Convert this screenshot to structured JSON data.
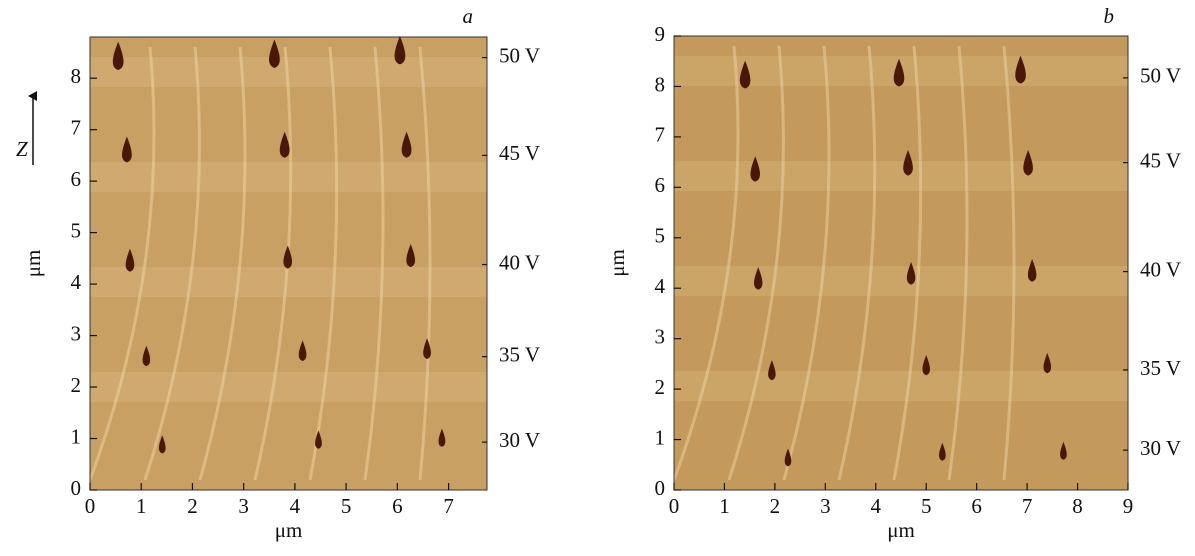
{
  "chart_data": [
    {
      "type": "scatter",
      "panel_label": "a",
      "xlabel": "μm",
      "ylabel": "μm",
      "axis_arrow_label": "Z",
      "x": [
        0.55,
        3.6,
        6.05,
        0.72,
        3.8,
        6.18,
        0.78,
        3.86,
        6.26,
        1.1,
        4.15,
        6.58,
        1.41,
        4.46,
        6.87
      ],
      "y": [
        8.33,
        8.37,
        8.44,
        6.52,
        6.61,
        6.61,
        4.38,
        4.44,
        4.47,
        2.53,
        2.63,
        2.67,
        0.82,
        0.91,
        0.95
      ],
      "color": "#4a1808",
      "background": "#c9a063",
      "xlim": [
        0,
        7.75
      ],
      "ylim": [
        0,
        8.8
      ],
      "xticks": [
        0,
        1,
        2,
        3,
        4,
        5,
        6,
        7
      ],
      "yticks": [
        0,
        1,
        2,
        3,
        4,
        5,
        6,
        7,
        8
      ],
      "y2lim": [
        0,
        8.8
      ],
      "y2ticks": [
        {
          "value": 8.4,
          "label": "50 V"
        },
        {
          "value": 6.5,
          "label": "45 V"
        },
        {
          "value": 4.38,
          "label": "40 V"
        },
        {
          "value": 2.59,
          "label": "35 V"
        },
        {
          "value": 0.93,
          "label": "30 V"
        }
      ]
    },
    {
      "type": "scatter",
      "panel_label": "b",
      "xlabel": "μm",
      "ylabel": "μm",
      "x": [
        1.41,
        4.46,
        6.87,
        1.61,
        4.64,
        7.02,
        1.67,
        4.7,
        7.1,
        1.94,
        5.0,
        7.4,
        2.26,
        5.32,
        7.72
      ],
      "y": [
        8.13,
        8.17,
        8.23,
        6.27,
        6.39,
        6.39,
        4.11,
        4.21,
        4.27,
        2.3,
        2.4,
        2.44,
        0.58,
        0.69,
        0.71
      ],
      "color": "#4a1808",
      "background": "#c49a5c",
      "xlim": [
        0,
        9
      ],
      "ylim": [
        0,
        9
      ],
      "xticks": [
        0,
        1,
        2,
        3,
        4,
        5,
        6,
        7,
        8,
        9
      ],
      "yticks": [
        0,
        1,
        2,
        3,
        4,
        5,
        6,
        7,
        8,
        9
      ],
      "y2lim": [
        0,
        9
      ],
      "y2ticks": [
        {
          "value": 8.17,
          "label": "50 V"
        },
        {
          "value": 6.49,
          "label": "45 V"
        },
        {
          "value": 4.33,
          "label": "40 V"
        },
        {
          "value": 2.38,
          "label": "35 V"
        },
        {
          "value": 0.79,
          "label": "30 V"
        }
      ]
    }
  ]
}
